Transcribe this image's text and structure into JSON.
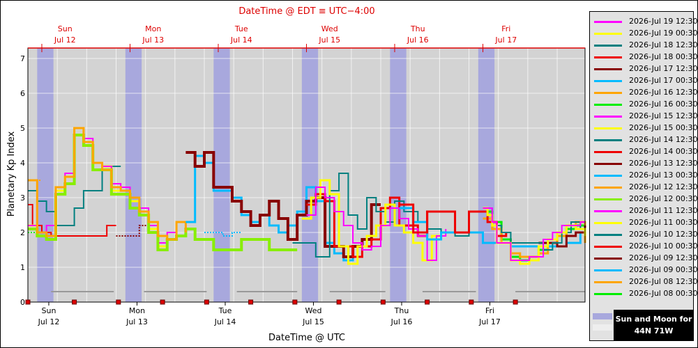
{
  "chart_data": {
    "type": "line",
    "title": "DateTime @ EDT ≡ UTC−4:00",
    "xlabel": "DateTime @ UTC",
    "ylabel": "Planetary Kp Index",
    "ylim": [
      0,
      7.3
    ],
    "yticks": [
      "0",
      "1",
      "2",
      "3",
      "4",
      "5",
      "6",
      "7"
    ],
    "x_range_hours": [
      0,
      120
    ],
    "x_unit": "hours from 2026-07-12 00:00 UTC",
    "bottom_ticks": [
      {
        "day": "Sun",
        "date": "Jul 12"
      },
      {
        "day": "Mon",
        "date": "Jul 13"
      },
      {
        "day": "Tue",
        "date": "Jul 14"
      },
      {
        "day": "Wed",
        "date": "Jul 15"
      },
      {
        "day": "Thu",
        "date": "Jul 16"
      },
      {
        "day": "Fri",
        "date": "Jul 17"
      }
    ],
    "top_ticks": [
      {
        "day": "Sun",
        "date": "Jul 12"
      },
      {
        "day": "Mon",
        "date": "Jul 13"
      },
      {
        "day": "Tue",
        "date": "Jul 14"
      },
      {
        "day": "Wed",
        "date": "Jul 15"
      },
      {
        "day": "Thu",
        "date": "Jul 16"
      },
      {
        "day": "Fri",
        "date": "Jul 17"
      }
    ],
    "top_axis_color": "#dd0000",
    "plot_background": "#d3d3d3",
    "night_band_color": "#a8a8dd",
    "night_bands_hours": [
      [
        2,
        5.5
      ],
      [
        21,
        24.5
      ],
      [
        40,
        43.5
      ],
      [
        59,
        62.5
      ],
      [
        78,
        81.5
      ],
      [
        97,
        100.5
      ]
    ],
    "moon_bars_hours": [
      [
        5,
        18.5
      ],
      [
        25,
        38.5
      ],
      [
        45,
        58
      ],
      [
        65,
        77
      ],
      [
        85,
        96.5
      ],
      [
        105,
        120
      ]
    ],
    "moon_bar_y": 0.3,
    "marker_hours": [
      0,
      10,
      19.5,
      29,
      38.5,
      48,
      57.5,
      67,
      76.5,
      86,
      95.5,
      105
    ],
    "series": [
      {
        "name": "2026-Jul 19 12:30",
        "color": "#ff00ff",
        "x": [
          98,
          99,
          100,
          101,
          104,
          106,
          108,
          111,
          113,
          115,
          117,
          119,
          120
        ],
        "y": [
          2.7,
          2.7,
          2.3,
          1.7,
          1.2,
          1.2,
          1.3,
          1.8,
          2.0,
          2.2,
          2.2,
          2.3,
          2.3
        ]
      },
      {
        "name": "2026-Jul 19 00:30",
        "color": "#ffff00",
        "x": [
          98,
          99,
          100,
          101,
          104,
          106,
          108,
          110,
          112,
          114,
          116,
          118,
          120
        ],
        "y": [
          2.7,
          2.5,
          2.2,
          1.7,
          1.2,
          1.1,
          1.2,
          1.6,
          1.8,
          2.0,
          2.2,
          2.1,
          1.9
        ]
      },
      {
        "name": "2026-Jul 18 12:30",
        "color": "#008080",
        "x": [
          98,
          100,
          102,
          104,
          106,
          108,
          111,
          113,
          115,
          117,
          119,
          120
        ],
        "y": [
          2.7,
          2.2,
          2.0,
          1.7,
          1.7,
          1.7,
          1.5,
          1.7,
          2.0,
          2.3,
          2.1,
          2.1
        ]
      },
      {
        "name": "2026-Jul 18 00:30",
        "color": "#ee0000",
        "x": [
          80,
          83,
          86,
          89,
          92,
          95,
          97,
          99,
          101,
          103
        ],
        "y": [
          2.8,
          2.0,
          2.6,
          2.6,
          2.0,
          2.6,
          2.6,
          2.3,
          1.9,
          2.0
        ]
      },
      {
        "name": "2026-Jul 17 12:30",
        "color": "#880000",
        "x": [
          110,
          112,
          114,
          116,
          118,
          120
        ],
        "y": [
          1.7,
          1.7,
          1.6,
          1.9,
          2.0,
          2.2
        ]
      },
      {
        "name": "2026-Jul 17 00:30",
        "color": "#00bbff",
        "x": [
          80,
          83,
          86,
          89,
          92,
          95,
          98,
          101,
          104,
          107,
          110,
          113,
          116,
          119,
          120
        ],
        "y": [
          2.7,
          2.3,
          1.8,
          2.0,
          2.0,
          2.0,
          1.7,
          1.7,
          1.6,
          1.6,
          1.6,
          1.6,
          1.7,
          2.0,
          2.0
        ]
      },
      {
        "name": "2026-Jul 16 12:30",
        "color": "#ffa500",
        "x": [
          98,
          100,
          102,
          104,
          106,
          108,
          110,
          112,
          114,
          116,
          118,
          120
        ],
        "y": [
          2.4,
          2.1,
          1.7,
          1.4,
          1.3,
          1.3,
          1.4,
          1.6,
          1.9,
          2.2,
          2.3,
          1.7
        ]
      },
      {
        "name": "2026-Jul 16 00:30",
        "color": "#00ee00",
        "x": [
          98,
          100,
          102,
          104,
          106,
          108,
          110,
          112,
          114,
          116,
          118,
          120
        ],
        "y": [
          2.6,
          2.3,
          1.8,
          1.3,
          1.2,
          1.3,
          1.5,
          1.7,
          1.9,
          2.1,
          2.2,
          2.2
        ]
      },
      {
        "name": "2026-Jul 15 12:30",
        "color": "#ff00ff",
        "x": [
          60,
          62,
          64,
          66,
          68,
          70,
          72,
          74,
          76,
          78,
          80,
          82,
          84,
          86,
          88,
          90
        ],
        "y": [
          2.5,
          3.3,
          3.0,
          2.6,
          2.2,
          1.7,
          1.5,
          1.6,
          2.2,
          2.7,
          2.4,
          2.1,
          1.9,
          1.2,
          1.9,
          2.1
        ]
      },
      {
        "name": "2026-Jul 15 00:30",
        "color": "#ffff00",
        "x": [
          59,
          61,
          63,
          65,
          67,
          69,
          71,
          73,
          75,
          77,
          79,
          81,
          83,
          85,
          87,
          89
        ],
        "y": [
          2.4,
          3.0,
          3.5,
          3.1,
          1.6,
          1.1,
          1.6,
          1.9,
          2.2,
          2.8,
          2.2,
          2.0,
          1.7,
          1.2,
          1.9,
          2.0
        ]
      },
      {
        "name": "2026-Jul 14 12:30",
        "color": "#008080",
        "x": [
          57,
          60,
          62,
          65,
          67,
          69,
          71,
          73,
          75,
          77,
          79,
          81,
          84,
          86,
          89,
          92,
          95,
          98
        ],
        "y": [
          1.7,
          1.7,
          1.3,
          3.2,
          3.7,
          2.5,
          2.1,
          3.0,
          2.6,
          2.3,
          2.9,
          2.6,
          2.3,
          2.1,
          2.0,
          1.9,
          2.0,
          2.0
        ]
      },
      {
        "name": "2026-Jul 14 00:30",
        "color": "#ee0000",
        "x": [
          60,
          62,
          64,
          66,
          68,
          70,
          72,
          74,
          76,
          78,
          80,
          82,
          84,
          86,
          88
        ],
        "y": [
          2.8,
          3.1,
          2.9,
          1.6,
          1.6,
          1.3,
          1.6,
          1.8,
          2.7,
          3.0,
          2.2,
          2.2,
          1.9,
          2.6,
          2.6
        ]
      },
      {
        "name": "2026-Jul 13 12:30",
        "color": "#880000",
        "x": [
          34,
          36,
          38,
          40,
          42,
          44,
          46,
          48,
          50,
          52,
          54,
          56,
          58,
          60,
          62,
          64,
          66,
          68,
          70,
          72,
          74,
          76
        ],
        "y": [
          4.3,
          3.9,
          4.3,
          3.3,
          3.3,
          2.9,
          2.6,
          2.2,
          2.5,
          2.9,
          2.4,
          1.8,
          2.5,
          2.9,
          3.0,
          1.6,
          1.6,
          1.3,
          1.6,
          1.8,
          2.8,
          2.8
        ]
      },
      {
        "name": "2026-Jul 13 00:30",
        "color": "#00bbff",
        "x": [
          34,
          36,
          38,
          40,
          42,
          44,
          46,
          48,
          50,
          52,
          54,
          56,
          58,
          60,
          62,
          64,
          66,
          68,
          70,
          72,
          74
        ],
        "y": [
          2.3,
          4.2,
          4.0,
          3.2,
          3.2,
          3.0,
          2.5,
          2.3,
          2.5,
          2.2,
          2.0,
          2.2,
          2.6,
          3.3,
          2.9,
          1.7,
          1.4,
          1.2,
          1.6,
          1.8,
          2.3
        ]
      },
      {
        "name": "2026-Jul 12 12:30",
        "color": "#ffa500",
        "x": [
          0,
          2,
          4,
          6,
          8,
          10,
          12,
          14,
          16,
          18,
          20,
          22,
          24,
          26,
          28,
          30,
          32,
          34
        ],
        "y": [
          3.5,
          2.0,
          1.9,
          3.3,
          3.6,
          5.0,
          4.6,
          4.0,
          3.8,
          3.3,
          3.2,
          3.0,
          2.6,
          2.3,
          1.9,
          1.8,
          2.3,
          2.0
        ]
      },
      {
        "name": "2026-Jul 12 00:30",
        "color": "#88ee00",
        "x": [
          0,
          2,
          4,
          6,
          8,
          10,
          12,
          14,
          16,
          18,
          20,
          22,
          24,
          26,
          28,
          30,
          32,
          34,
          36,
          38,
          40,
          42,
          44,
          46,
          48,
          50,
          52,
          54,
          56,
          58
        ],
        "y": [
          2.1,
          1.9,
          1.8,
          3.1,
          3.4,
          4.8,
          4.5,
          3.8,
          3.8,
          3.1,
          3.1,
          2.7,
          2.5,
          2.0,
          1.5,
          1.8,
          1.9,
          2.1,
          1.8,
          1.8,
          1.5,
          1.5,
          1.5,
          1.8,
          1.8,
          1.8,
          1.5,
          1.5,
          1.5,
          1.5
        ]
      },
      {
        "name": "2026-Jul 11 12:30",
        "color": "#ff00ff",
        "x": [
          0,
          2,
          4,
          6,
          8,
          10,
          12,
          14,
          16,
          18,
          20,
          22,
          24,
          26,
          28,
          30,
          32,
          34
        ],
        "y": [
          2.2,
          2.0,
          2.2,
          3.3,
          3.7,
          5.0,
          4.7,
          4.0,
          3.9,
          3.4,
          3.3,
          3.0,
          2.7,
          2.2,
          1.7,
          2.0,
          2.3,
          2.1
        ]
      },
      {
        "name": "2026-Jul 11 00:30",
        "color": "#ffff00",
        "x": [
          0,
          2,
          4,
          6,
          8,
          10,
          12,
          14,
          16,
          18,
          20,
          22,
          24,
          26,
          28,
          30
        ],
        "y": [
          2.2,
          2.0,
          1.9,
          3.2,
          3.6,
          5.0,
          4.6,
          4.0,
          3.9,
          3.2,
          3.2,
          2.9,
          2.6,
          2.1,
          1.6,
          1.9
        ]
      },
      {
        "name": "2026-Jul 10 12:30",
        "color": "#008080",
        "x": [
          0,
          2,
          4,
          6,
          8,
          10,
          12,
          14,
          16,
          18,
          20
        ],
        "y": [
          3.2,
          2.9,
          2.6,
          2.2,
          2.2,
          2.7,
          3.2,
          3.2,
          3.9,
          3.9,
          3.9
        ]
      },
      {
        "name": "2026-Jul 10 00:30",
        "color": "#ee0000",
        "x": [
          0,
          1,
          3,
          5,
          8,
          12,
          15,
          17,
          19
        ],
        "y": [
          2.8,
          2.2,
          2.0,
          1.9,
          1.9,
          1.9,
          1.9,
          2.2,
          2.2
        ]
      },
      {
        "name": "2026-Jul 09 12:30",
        "color": "#880000",
        "x": [
          19,
          22,
          24,
          26,
          28
        ],
        "y": [
          1.9,
          1.9,
          2.2,
          2.2,
          2.2
        ]
      },
      {
        "name": "2026-Jul 09 00:30",
        "color": "#00bbff",
        "x": [
          38,
          40,
          42,
          44,
          46
        ],
        "y": [
          2.0,
          2.0,
          1.9,
          2.0,
          2.0
        ]
      },
      {
        "name": "2026-Jul 08 12:30",
        "color": "#ffa500",
        "x": [
          0,
          1,
          2,
          3
        ],
        "y": [
          3.5,
          3.5,
          3.5,
          3.5
        ]
      },
      {
        "name": "2026-Jul 08 00:30",
        "color": "#00ee00",
        "x": [
          0,
          1,
          2
        ],
        "y": [
          2.0,
          2.0,
          2.0
        ]
      }
    ]
  },
  "sun_moon_label_line1": "Sun and Moon for",
  "sun_moon_label_line2": "44N 71W"
}
